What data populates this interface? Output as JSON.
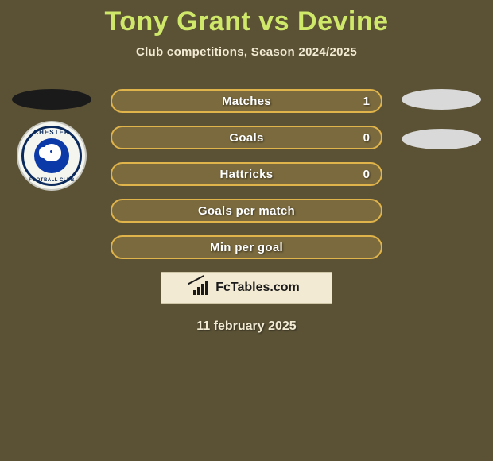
{
  "background_color": "#5b5236",
  "title": {
    "text": "Tony Grant vs Devine",
    "color": "#cfe86a",
    "fontsize": 34
  },
  "subtitle": {
    "text": "Club competitions, Season 2024/2025",
    "color": "#f2ead2",
    "fontsize": 15
  },
  "left_marker": {
    "color": "#1a1a1a"
  },
  "right_marker_top": {
    "color": "#d9d9d9"
  },
  "right_marker_bottom": {
    "color": "#d9d9d9"
  },
  "badge": {
    "top_text": "CHESTER",
    "bottom_text": "FOOTBALL CLUB",
    "ring_color": "#0b2a5b",
    "center_color": "#0b3aa8",
    "text_color": "#0b2a5b"
  },
  "rows": {
    "border_color": "#e0b44a",
    "fill_color": "#7a6a3e",
    "label_color": "#ffffff",
    "height": 30,
    "items": [
      {
        "label": "Matches",
        "right_value": "1"
      },
      {
        "label": "Goals",
        "right_value": "0"
      },
      {
        "label": "Hattricks",
        "right_value": "0"
      },
      {
        "label": "Goals per match",
        "right_value": ""
      },
      {
        "label": "Min per goal",
        "right_value": ""
      }
    ]
  },
  "brand": {
    "box_bg": "#f2ead2",
    "text": "FcTables.com",
    "text_color": "#1a1a1a"
  },
  "date": {
    "text": "11 february 2025",
    "color": "#f2ead2"
  }
}
